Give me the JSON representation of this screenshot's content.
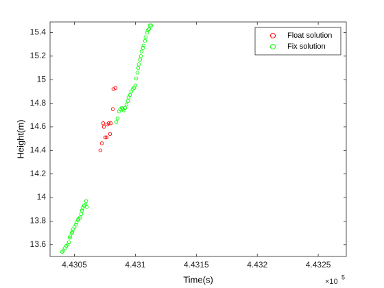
{
  "chart_data": {
    "type": "scatter",
    "xlabel": "Time(s)",
    "ylabel": "Height(m)",
    "x_exponent_base": "×10",
    "x_exponent": 5,
    "xlim": [
      443030,
      443273
    ],
    "ylim": [
      13.5,
      15.49
    ],
    "xticks": [
      {
        "value": 443050,
        "label": "4.4305"
      },
      {
        "value": 443100,
        "label": "4.431"
      },
      {
        "value": 443150,
        "label": "4.4315"
      },
      {
        "value": 443200,
        "label": "4.432"
      },
      {
        "value": 443250,
        "label": "4.4325"
      }
    ],
    "yticks": [
      13.6,
      13.8,
      14,
      14.2,
      14.4,
      14.6,
      14.8,
      15,
      15.2,
      15.4
    ],
    "legend": "northeast",
    "grid": false,
    "series": [
      {
        "name": "Float solution",
        "color": "#ff0000",
        "x": [
          443071.3,
          443072.5,
          443073.6,
          443074.2,
          443075.3,
          443076.4,
          443077.0,
          443078.1,
          443079.2,
          443079.8,
          443081.5,
          443082.0,
          443083.7
        ],
        "values": [
          14.4,
          14.46,
          14.63,
          14.6,
          14.51,
          14.51,
          14.62,
          14.63,
          14.54,
          14.63,
          14.75,
          14.92,
          14.93
        ]
      },
      {
        "name": "Fix solution",
        "color": "#00ff00",
        "x": [
          443039.9,
          443041.0,
          443042.1,
          443043.3,
          443044.4,
          443045.5,
          443046.1,
          443046.6,
          443047.8,
          443048.3,
          443048.9,
          443050.0,
          443051.1,
          443051.7,
          443052.8,
          443053.4,
          443054.5,
          443055.6,
          443056.2,
          443056.7,
          443057.9,
          443059.0,
          443059.6,
          443060.1,
          443084.3,
          443085.4,
          443086.5,
          443087.6,
          443088.8,
          443089.9,
          443090.4,
          443091.6,
          443092.7,
          443093.8,
          443094.4,
          443095.5,
          443096.6,
          443097.8,
          443098.9,
          443100.0,
          443100.6,
          443101.7,
          443102.2,
          443102.8,
          443103.9,
          443104.5,
          443105.1,
          443106.2,
          443106.7,
          443107.9,
          443108.4,
          443109.6,
          443110.1,
          443111.2,
          443111.8,
          443112.9
        ],
        "values": [
          13.54,
          13.55,
          13.57,
          13.59,
          13.6,
          13.62,
          13.66,
          13.67,
          13.7,
          13.71,
          13.73,
          13.75,
          13.77,
          13.79,
          13.81,
          13.82,
          13.83,
          13.86,
          13.89,
          13.91,
          13.93,
          13.94,
          13.97,
          13.92,
          14.64,
          14.67,
          14.73,
          14.75,
          14.76,
          14.75,
          14.74,
          14.76,
          14.79,
          14.82,
          14.85,
          14.87,
          14.9,
          14.92,
          14.93,
          14.95,
          15.01,
          15.06,
          15.1,
          15.13,
          15.17,
          15.2,
          15.24,
          15.27,
          15.29,
          15.33,
          15.36,
          15.4,
          15.42,
          15.43,
          15.46,
          15.46
        ]
      }
    ]
  }
}
